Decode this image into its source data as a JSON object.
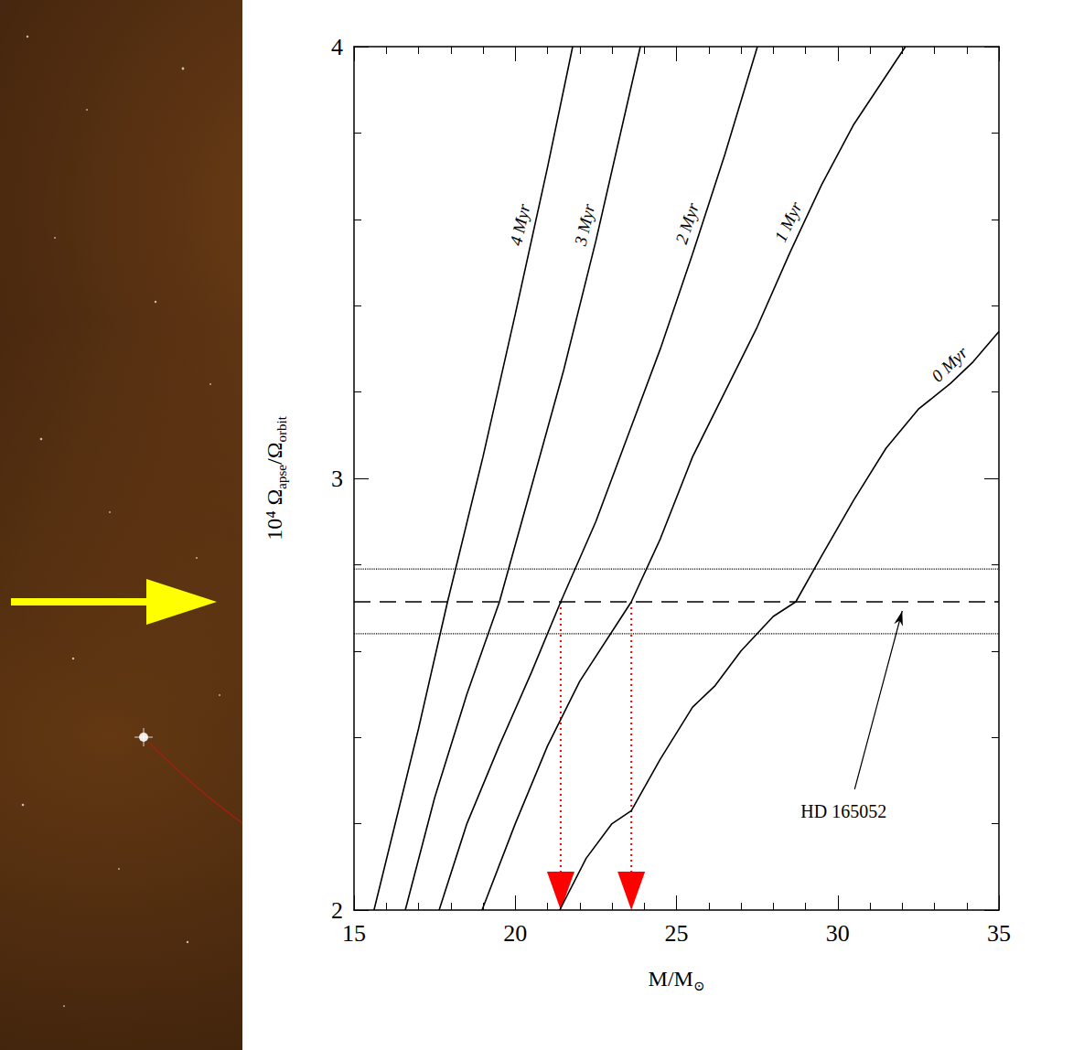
{
  "chart_data": {
    "type": "line",
    "xlabel": "M/M⊙",
    "ylabel": "10⁴ Ωapse/Ωorbit",
    "xlim": [
      15,
      35
    ],
    "xticks": [
      15,
      20,
      25,
      30,
      35
    ],
    "ylim": [
      2,
      4
    ],
    "yticks": [
      2,
      3,
      4
    ],
    "grid": false,
    "series": [
      {
        "name": "0 Myr",
        "color": "#000000",
        "x": [
          21.38,
          22.2,
          23.0,
          23.6,
          24.5,
          25.5,
          26.2,
          27.0,
          28.0,
          28.7,
          29.5,
          30.5,
          31.5,
          32.5,
          33.5,
          34.2,
          35.0
        ],
        "values": [
          2.0,
          2.12,
          2.2,
          2.23,
          2.35,
          2.47,
          2.52,
          2.6,
          2.68,
          2.714,
          2.82,
          2.95,
          3.07,
          3.16,
          3.22,
          3.27,
          3.34
        ]
      },
      {
        "name": "1 Myr",
        "color": "#000000",
        "x": [
          18.97,
          20.0,
          21.0,
          22.0,
          23.6,
          24.5,
          25.5,
          26.5,
          27.5,
          28.5,
          29.5,
          30.5,
          32.1
        ],
        "values": [
          2.0,
          2.2,
          2.38,
          2.53,
          2.714,
          2.86,
          3.05,
          3.2,
          3.35,
          3.52,
          3.68,
          3.82,
          4.0
        ]
      },
      {
        "name": "2 Myr",
        "color": "#000000",
        "x": [
          17.64,
          18.5,
          19.5,
          20.5,
          21.41,
          22.5,
          23.5,
          24.5,
          25.5,
          26.5,
          27.51
        ],
        "values": [
          2.0,
          2.2,
          2.38,
          2.55,
          2.714,
          2.9,
          3.1,
          3.3,
          3.52,
          3.75,
          4.0
        ]
      },
      {
        "name": "3 Myr",
        "color": "#000000",
        "x": [
          16.59,
          17.5,
          18.5,
          19.51,
          20.5,
          21.5,
          22.5,
          23.88
        ],
        "values": [
          2.0,
          2.26,
          2.5,
          2.714,
          2.98,
          3.25,
          3.55,
          4.0
        ]
      },
      {
        "name": "4 Myr",
        "color": "#000000",
        "x": [
          15.62,
          17.0,
          17.9,
          19.0,
          20.0,
          21.0,
          21.78
        ],
        "values": [
          2.0,
          2.42,
          2.714,
          3.05,
          3.38,
          3.72,
          4.0
        ]
      }
    ],
    "reference": {
      "label": "HD 165052",
      "value": 2.714,
      "lower": 2.64,
      "upper": 2.79,
      "arrow_x": 32,
      "color": "#000000",
      "line_style": "dashed"
    },
    "readings": {
      "x": [
        21.41,
        23.6
      ],
      "color": "#ff0000",
      "line_style": "dotted"
    }
  }
}
